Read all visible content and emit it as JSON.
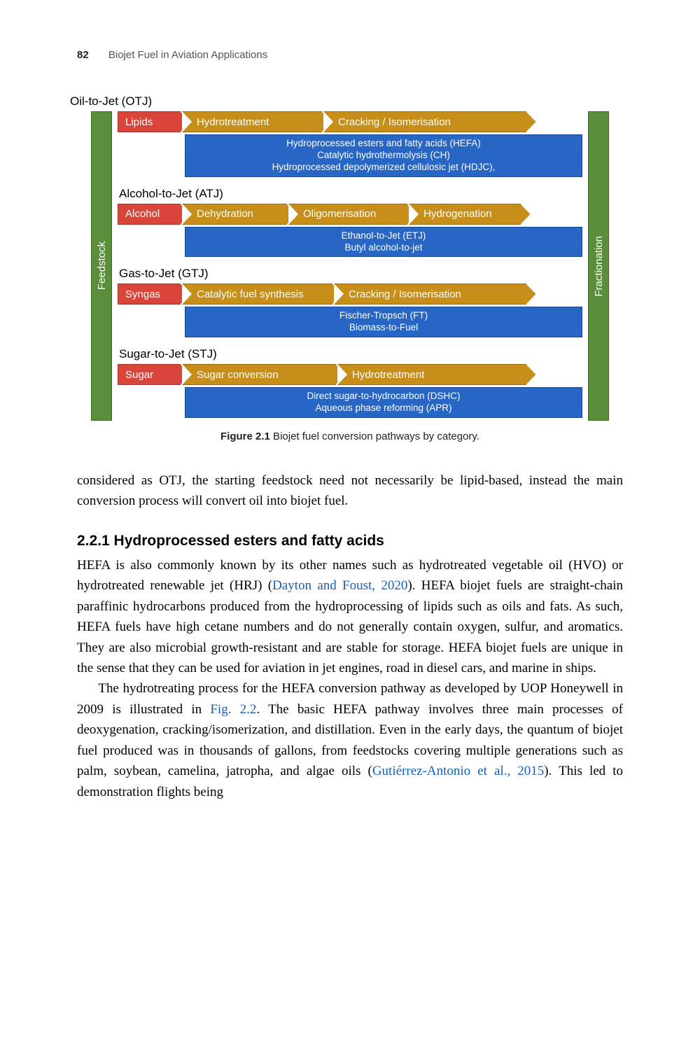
{
  "page": {
    "number": "82",
    "running_title": "Biojet Fuel in Aviation Applications"
  },
  "diagram": {
    "left_bar": "Feedstock",
    "right_bar": "Fractionation",
    "colors": {
      "feedstock_bar": "#5b8e3a",
      "feed_arrow": "#d9453a",
      "process_arrow": "#c78f1a",
      "desc_box": "#2766c4"
    },
    "pathways": [
      {
        "title": "Oil-to-Jet (OTJ)",
        "feed": "Lipids",
        "processes": [
          "Hydrotreatment",
          "Cracking / Isomerisation"
        ],
        "widths": [
          200,
          290
        ],
        "desc": [
          "Hydroprocessed esters and fatty acids (HEFA)",
          "Catalytic hydrothermolysis (CH)",
          "Hydroprocessed depolymerized cellulosic jet (HDJC),"
        ]
      },
      {
        "title": "Alcohol-to-Jet (ATJ)",
        "feed": "Alcohol",
        "processes": [
          "Dehydration",
          "Oligomerisation",
          "Hydrogenation"
        ],
        "widths": [
          150,
          170,
          160
        ],
        "desc": [
          "Ethanol-to-Jet (ETJ)",
          "Butyl alcohol-to-jet"
        ]
      },
      {
        "title": "Gas-to-Jet (GTJ)",
        "feed": "Syngas",
        "processes": [
          "Catalytic fuel synthesis",
          "Cracking / Isomerisation"
        ],
        "widths": [
          215,
          275
        ],
        "desc": [
          "Fischer-Tropsch (FT)",
          "Biomass-to-Fuel"
        ]
      },
      {
        "title": "Sugar-to-Jet (STJ)",
        "feed": "Sugar",
        "processes": [
          "Sugar conversion",
          "Hydrotreatment"
        ],
        "widths": [
          220,
          270
        ],
        "desc": [
          "Direct sugar-to-hydrocarbon (DSHC)",
          "Aqueous phase reforming (APR)"
        ]
      }
    ]
  },
  "figure_caption": {
    "label": "Figure 2.1",
    "text": " Biojet fuel conversion pathways by category."
  },
  "text": {
    "para0": "considered as OTJ, the starting feedstock need not necessarily be lipid-based, instead the main conversion process will convert oil into biojet fuel.",
    "heading": "2.2.1 Hydroprocessed esters and fatty acids",
    "para1_a": "HEFA is also commonly known by its other names such as hydrotreated vegetable oil (HVO) or hydrotreated renewable jet (HRJ) (",
    "cite1": "Dayton and Foust, 2020",
    "para1_b": "). HEFA biojet fuels are straight-chain paraffinic hydrocarbons produced from the hydroprocessing of lipids such as oils and fats. As such, HEFA fuels have high cetane numbers and do not generally contain oxygen, sulfur, and aromatics. They are also microbial growth-resistant and are stable for storage. HEFA biojet fuels are unique in the sense that they can be used for aviation in jet engines, road in diesel cars, and marine in ships.",
    "para2_a": "The hydrotreating process for the HEFA conversion pathway as developed by UOP Honeywell in 2009 is illustrated in ",
    "cite2": "Fig. 2.2",
    "para2_b": ". The basic HEFA pathway involves three main processes of deoxygenation, cracking/isomerization, and distillation. Even in the early days, the quantum of biojet fuel produced was in thousands of gallons, from feedstocks covering multiple generations such as palm, soybean, camelina, jatropha, and algae oils (",
    "cite3": "Gutiérrez-Antonio et al., 2015",
    "para2_c": "). This led to demonstration flights being"
  }
}
